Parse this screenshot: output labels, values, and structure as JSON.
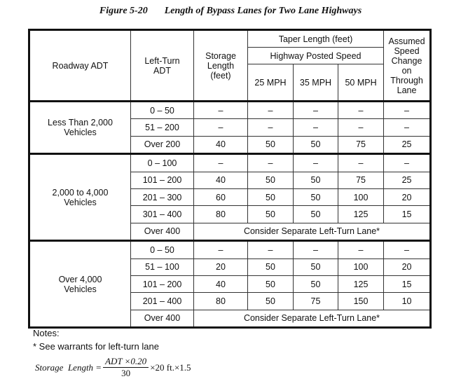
{
  "figure": {
    "number": "Figure 5-20",
    "title": "Length of Bypass Lanes for Two Lane Highways"
  },
  "header": {
    "roadway_adt": "Roadway ADT",
    "left_turn_adt": "Left-Turn ADT",
    "storage_length": "Storage Length (feet)",
    "taper_length": "Taper Length (feet)",
    "posted_speed": "Highway Posted Speed",
    "speeds": [
      "25 MPH",
      "35 MPH",
      "50 MPH"
    ],
    "speed_change": "Assumed Speed Change on Through Lane"
  },
  "sections": [
    {
      "label": "Less Than 2,000 Vehicles",
      "rows": [
        [
          "0 – 50",
          "–",
          "–",
          "–",
          "–",
          "–"
        ],
        [
          "51 – 200",
          "–",
          "–",
          "–",
          "–",
          "–"
        ],
        [
          "Over 200",
          "40",
          "50",
          "50",
          "75",
          "25"
        ]
      ]
    },
    {
      "label": "2,000 to 4,000 Vehicles",
      "rows": [
        [
          "0 – 100",
          "–",
          "–",
          "–",
          "–",
          "–"
        ],
        [
          "101 – 200",
          "40",
          "50",
          "50",
          "75",
          "25"
        ],
        [
          "201 – 300",
          "60",
          "50",
          "50",
          "100",
          "20"
        ],
        [
          "301 – 400",
          "80",
          "50",
          "50",
          "125",
          "15"
        ],
        [
          "Over 400",
          "Consider Separate Left-Turn Lane*"
        ]
      ]
    },
    {
      "label": "Over 4,000 Vehicles",
      "rows": [
        [
          "0 – 50",
          "–",
          "–",
          "–",
          "–",
          "–"
        ],
        [
          "51 – 100",
          "20",
          "50",
          "50",
          "100",
          "20"
        ],
        [
          "101 – 200",
          "40",
          "50",
          "50",
          "125",
          "15"
        ],
        [
          "201 – 400",
          "80",
          "50",
          "75",
          "150",
          "10"
        ],
        [
          "Over 400",
          "Consider Separate Left-Turn Lane*"
        ]
      ]
    }
  ],
  "notes": {
    "heading": "Notes:",
    "items": [
      "* See warrants for left-turn lane"
    ],
    "formula": {
      "lhs": "Storage  Length =",
      "numerator": "ADT ×0.20",
      "denominator": "30",
      "rhs": "×20 ft.×1.5"
    }
  }
}
